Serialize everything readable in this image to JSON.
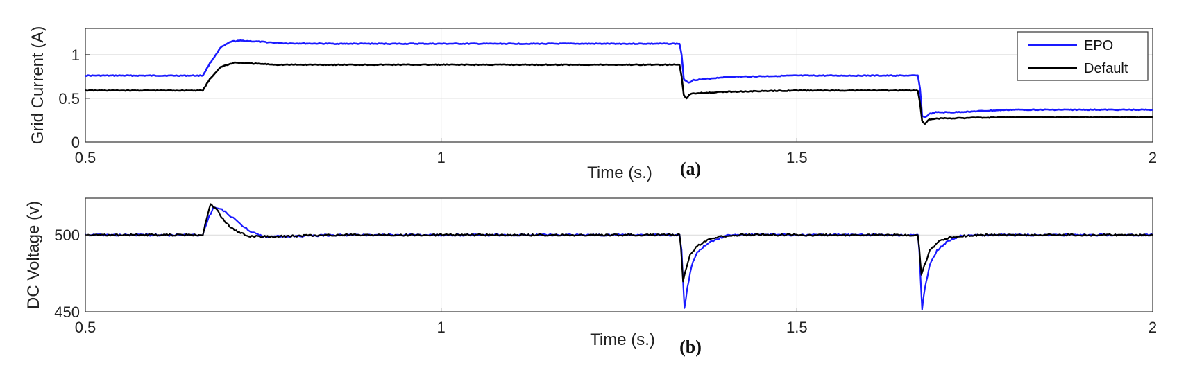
{
  "chart_data": [
    {
      "type": "line",
      "panel_label": "(a)",
      "xlabel": "Time (s.)",
      "ylabel": "Grid Current (A)",
      "xlim": [
        0.5,
        2
      ],
      "ylim": [
        0,
        1.3
      ],
      "xticks": [
        0.5,
        1,
        1.5,
        2
      ],
      "xtick_labels": [
        "0.5",
        "1",
        "1.5",
        "2"
      ],
      "yticks": [
        0,
        0.5,
        1
      ],
      "ytick_labels": [
        "0",
        "0.5",
        "1"
      ],
      "grid": true,
      "legend": "top-right",
      "series": [
        {
          "name": "EPO",
          "color": "#1a1aff",
          "points": [
            [
              0.5,
              0.76
            ],
            [
              0.665,
              0.76
            ],
            [
              0.675,
              0.9
            ],
            [
              0.69,
              1.08
            ],
            [
              0.705,
              1.15
            ],
            [
              0.72,
              1.16
            ],
            [
              0.74,
              1.15
            ],
            [
              0.78,
              1.13
            ],
            [
              0.85,
              1.125
            ],
            [
              1.0,
              1.125
            ],
            [
              1.2,
              1.125
            ],
            [
              1.335,
              1.125
            ],
            [
              1.338,
              1.0
            ],
            [
              1.341,
              0.72
            ],
            [
              1.348,
              0.68
            ],
            [
              1.355,
              0.71
            ],
            [
              1.37,
              0.72
            ],
            [
              1.4,
              0.745
            ],
            [
              1.5,
              0.76
            ],
            [
              1.67,
              0.76
            ],
            [
              1.673,
              0.62
            ],
            [
              1.676,
              0.3
            ],
            [
              1.68,
              0.28
            ],
            [
              1.686,
              0.32
            ],
            [
              1.695,
              0.34
            ],
            [
              1.72,
              0.34
            ],
            [
              1.8,
              0.37
            ],
            [
              2.0,
              0.37
            ]
          ]
        },
        {
          "name": "Default",
          "color": "#000000",
          "points": [
            [
              0.5,
              0.59
            ],
            [
              0.665,
              0.59
            ],
            [
              0.675,
              0.72
            ],
            [
              0.69,
              0.86
            ],
            [
              0.71,
              0.91
            ],
            [
              0.73,
              0.9
            ],
            [
              0.77,
              0.885
            ],
            [
              0.85,
              0.885
            ],
            [
              1.0,
              0.885
            ],
            [
              1.2,
              0.885
            ],
            [
              1.335,
              0.885
            ],
            [
              1.338,
              0.75
            ],
            [
              1.341,
              0.54
            ],
            [
              1.345,
              0.5
            ],
            [
              1.35,
              0.55
            ],
            [
              1.36,
              0.56
            ],
            [
              1.4,
              0.575
            ],
            [
              1.5,
              0.59
            ],
            [
              1.67,
              0.59
            ],
            [
              1.673,
              0.45
            ],
            [
              1.676,
              0.24
            ],
            [
              1.68,
              0.21
            ],
            [
              1.686,
              0.26
            ],
            [
              1.7,
              0.27
            ],
            [
              1.8,
              0.285
            ],
            [
              2.0,
              0.285
            ]
          ]
        }
      ]
    },
    {
      "type": "line",
      "panel_label": "(b)",
      "xlabel": "Time (s.)",
      "ylabel": "DC Voltage (v)",
      "xlim": [
        0.5,
        2
      ],
      "ylim": [
        450,
        524
      ],
      "xticks": [
        0.5,
        1,
        1.5,
        2
      ],
      "xtick_labels": [
        "0.5",
        "1",
        "1.5",
        "2"
      ],
      "yticks": [
        450,
        500
      ],
      "ytick_labels": [
        "450",
        "500"
      ],
      "grid": true,
      "series": [
        {
          "name": "EPO",
          "color": "#1a1aff",
          "points": [
            [
              0.5,
              500
            ],
            [
              0.665,
              500
            ],
            [
              0.672,
              510
            ],
            [
              0.68,
              518
            ],
            [
              0.69,
              517
            ],
            [
              0.7,
              514
            ],
            [
              0.715,
              508
            ],
            [
              0.73,
              503
            ],
            [
              0.75,
              499
            ],
            [
              0.78,
              499
            ],
            [
              0.85,
              500
            ],
            [
              1.335,
              500
            ],
            [
              1.338,
              490
            ],
            [
              1.34,
              470
            ],
            [
              1.342,
              452
            ],
            [
              1.346,
              465
            ],
            [
              1.352,
              480
            ],
            [
              1.36,
              489
            ],
            [
              1.375,
              495
            ],
            [
              1.4,
              499.5
            ],
            [
              1.45,
              500.5
            ],
            [
              1.5,
              500
            ],
            [
              1.67,
              500
            ],
            [
              1.672,
              490
            ],
            [
              1.674,
              470
            ],
            [
              1.676,
              452
            ],
            [
              1.68,
              466
            ],
            [
              1.687,
              481
            ],
            [
              1.697,
              490
            ],
            [
              1.712,
              496
            ],
            [
              1.73,
              499.5
            ],
            [
              1.78,
              500
            ],
            [
              2.0,
              500
            ]
          ]
        },
        {
          "name": "Default",
          "color": "#000000",
          "points": [
            [
              0.5,
              500
            ],
            [
              0.665,
              500
            ],
            [
              0.67,
              510
            ],
            [
              0.676,
              520
            ],
            [
              0.684,
              517
            ],
            [
              0.695,
              509
            ],
            [
              0.71,
              503
            ],
            [
              0.73,
              499
            ],
            [
              0.76,
              499
            ],
            [
              0.85,
              500
            ],
            [
              1.335,
              500
            ],
            [
              1.337,
              492
            ],
            [
              1.34,
              470
            ],
            [
              1.343,
              476
            ],
            [
              1.35,
              487
            ],
            [
              1.36,
              493
            ],
            [
              1.38,
              498
            ],
            [
              1.41,
              500
            ],
            [
              1.5,
              500
            ],
            [
              1.67,
              500
            ],
            [
              1.672,
              492
            ],
            [
              1.675,
              474
            ],
            [
              1.679,
              480
            ],
            [
              1.687,
              490
            ],
            [
              1.7,
              496
            ],
            [
              1.72,
              499
            ],
            [
              1.76,
              500
            ],
            [
              2.0,
              500
            ]
          ]
        }
      ]
    }
  ]
}
